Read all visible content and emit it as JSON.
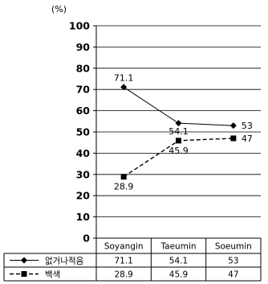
{
  "chart_data": {
    "type": "line",
    "unit_label": "(%)",
    "categories": [
      "Soyangin",
      "Taeumin",
      "Soeumin"
    ],
    "ylim": [
      0,
      100
    ],
    "yticks": [
      0,
      10,
      20,
      30,
      40,
      50,
      60,
      70,
      80,
      90,
      100
    ],
    "grid": true,
    "legend": "table-below",
    "series": [
      {
        "name": "없거나적음",
        "values": [
          71.1,
          54.1,
          53
        ],
        "labels": [
          "71.1",
          "54.1",
          "53"
        ],
        "marker": "diamond",
        "line": "solid",
        "color": "#000000"
      },
      {
        "name": "백색",
        "values": [
          28.9,
          45.9,
          47
        ],
        "labels": [
          "28.9",
          "45.9",
          "47"
        ],
        "marker": "square",
        "line": "dashed",
        "color": "#000000"
      }
    ]
  }
}
